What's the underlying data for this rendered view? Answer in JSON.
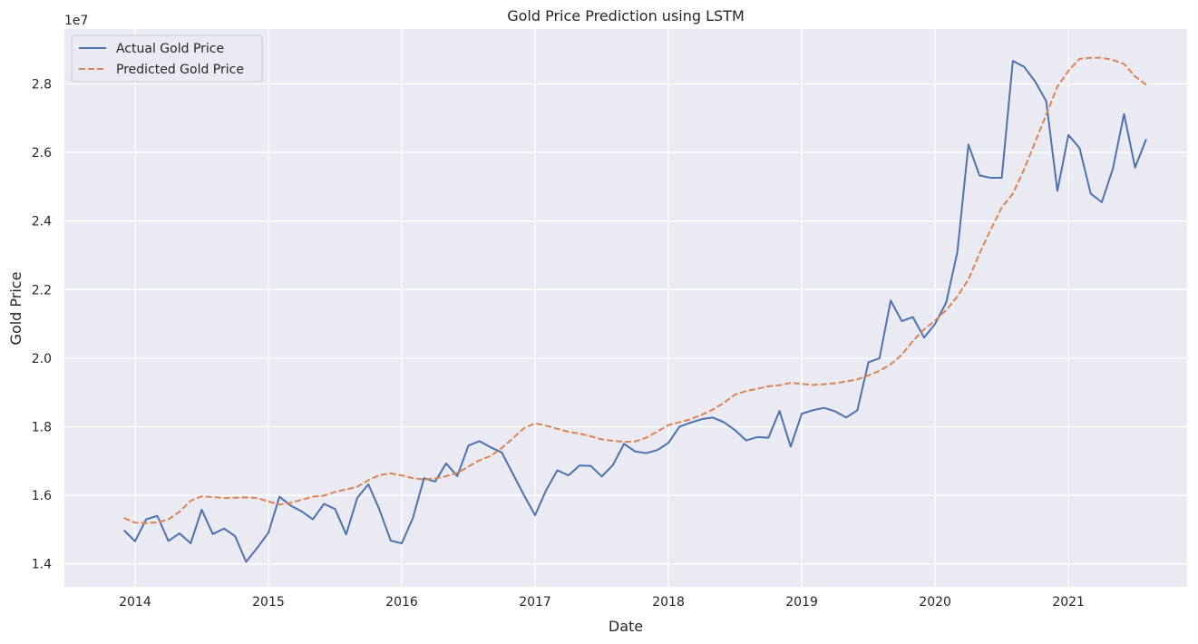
{
  "chart_data": {
    "type": "line",
    "title": "Gold Price Prediction using LSTM",
    "xlabel": "Date",
    "ylabel": "Gold Price",
    "y_scale_label": "1e7",
    "y_scale": 10000000,
    "xlim": [
      2013.47,
      2021.89
    ],
    "ylim": [
      13.33,
      29.6
    ],
    "x_ticks": [
      {
        "value": 2014,
        "label": "2014"
      },
      {
        "value": 2015,
        "label": "2015"
      },
      {
        "value": 2016,
        "label": "2016"
      },
      {
        "value": 2017,
        "label": "2017"
      },
      {
        "value": 2018,
        "label": "2018"
      },
      {
        "value": 2019,
        "label": "2019"
      },
      {
        "value": 2020,
        "label": "2020"
      },
      {
        "value": 2021,
        "label": "2021"
      }
    ],
    "y_ticks": [
      {
        "value": 14,
        "label": "1.4"
      },
      {
        "value": 16,
        "label": "1.6"
      },
      {
        "value": 18,
        "label": "1.8"
      },
      {
        "value": 20,
        "label": "2.0"
      },
      {
        "value": 22,
        "label": "2.2"
      },
      {
        "value": 24,
        "label": "2.4"
      },
      {
        "value": 26,
        "label": "2.6"
      },
      {
        "value": 28,
        "label": "2.8"
      }
    ],
    "grid": true,
    "legend_position": "top-left",
    "x": [
      2013.917,
      2014.0,
      2014.083,
      2014.167,
      2014.25,
      2014.333,
      2014.417,
      2014.5,
      2014.583,
      2014.667,
      2014.75,
      2014.833,
      2014.917,
      2015.0,
      2015.083,
      2015.167,
      2015.25,
      2015.333,
      2015.417,
      2015.5,
      2015.583,
      2015.667,
      2015.75,
      2015.833,
      2015.917,
      2016.0,
      2016.083,
      2016.167,
      2016.25,
      2016.333,
      2016.417,
      2016.5,
      2016.583,
      2016.667,
      2016.75,
      2016.833,
      2016.917,
      2017.0,
      2017.083,
      2017.167,
      2017.25,
      2017.333,
      2017.417,
      2017.5,
      2017.583,
      2017.667,
      2017.75,
      2017.833,
      2017.917,
      2018.0,
      2018.083,
      2018.167,
      2018.25,
      2018.333,
      2018.417,
      2018.5,
      2018.583,
      2018.667,
      2018.75,
      2018.833,
      2018.917,
      2019.0,
      2019.083,
      2019.167,
      2019.25,
      2019.333,
      2019.417,
      2019.5,
      2019.583,
      2019.667,
      2019.75,
      2019.833,
      2019.917,
      2020.0,
      2020.083,
      2020.167,
      2020.25,
      2020.333,
      2020.417,
      2020.5,
      2020.583,
      2020.667,
      2020.75,
      2020.833,
      2020.917,
      2021.0,
      2021.083,
      2021.167,
      2021.25,
      2021.333,
      2021.417,
      2021.5,
      2021.583
    ],
    "series": [
      {
        "name": "Actual Gold Price",
        "color": "#4c72b0",
        "style": "solid",
        "values": [
          14.98,
          14.66,
          15.3,
          15.4,
          14.67,
          14.89,
          14.6,
          15.58,
          14.87,
          15.03,
          14.81,
          14.06,
          14.47,
          14.91,
          15.96,
          15.7,
          15.53,
          15.3,
          15.75,
          15.6,
          14.86,
          15.93,
          16.32,
          15.58,
          14.68,
          14.6,
          15.33,
          16.5,
          16.4,
          16.93,
          16.56,
          17.45,
          17.58,
          17.4,
          17.25,
          16.63,
          16.0,
          15.42,
          16.15,
          16.73,
          16.58,
          16.87,
          16.86,
          16.55,
          16.88,
          17.5,
          17.28,
          17.23,
          17.32,
          17.53,
          18.0,
          18.12,
          18.22,
          18.27,
          18.13,
          17.9,
          17.6,
          17.7,
          17.68,
          18.46,
          17.42,
          18.38,
          18.48,
          18.55,
          18.45,
          18.27,
          18.48,
          19.88,
          20.0,
          21.68,
          21.08,
          21.2,
          20.6,
          21.0,
          21.62,
          23.1,
          26.23,
          25.33,
          25.26,
          25.26,
          28.67,
          28.5,
          28.07,
          27.5,
          24.88,
          26.51,
          26.13,
          24.8,
          24.55,
          25.52,
          27.12,
          25.56,
          26.39
        ]
      },
      {
        "name": "Predicted Gold Price",
        "color": "#dd8452",
        "style": "dashed",
        "values": [
          15.34,
          15.2,
          15.19,
          15.21,
          15.3,
          15.52,
          15.84,
          15.97,
          15.95,
          15.92,
          15.93,
          15.94,
          15.92,
          15.82,
          15.73,
          15.78,
          15.87,
          15.96,
          15.99,
          16.1,
          16.17,
          16.25,
          16.44,
          16.59,
          16.64,
          16.58,
          16.5,
          16.46,
          16.49,
          16.56,
          16.65,
          16.84,
          17.02,
          17.15,
          17.38,
          17.66,
          17.96,
          18.1,
          18.03,
          17.94,
          17.85,
          17.8,
          17.72,
          17.63,
          17.59,
          17.56,
          17.57,
          17.68,
          17.86,
          18.05,
          18.13,
          18.22,
          18.35,
          18.5,
          18.7,
          18.94,
          19.04,
          19.11,
          19.18,
          19.21,
          19.28,
          19.25,
          19.22,
          19.24,
          19.27,
          19.32,
          19.38,
          19.5,
          19.63,
          19.82,
          20.1,
          20.5,
          20.84,
          21.1,
          21.4,
          21.8,
          22.3,
          23.05,
          23.75,
          24.4,
          24.8,
          25.5,
          26.3,
          27.1,
          27.92,
          28.38,
          28.73,
          28.76,
          28.76,
          28.7,
          28.58,
          28.22,
          27.97
        ]
      }
    ]
  }
}
